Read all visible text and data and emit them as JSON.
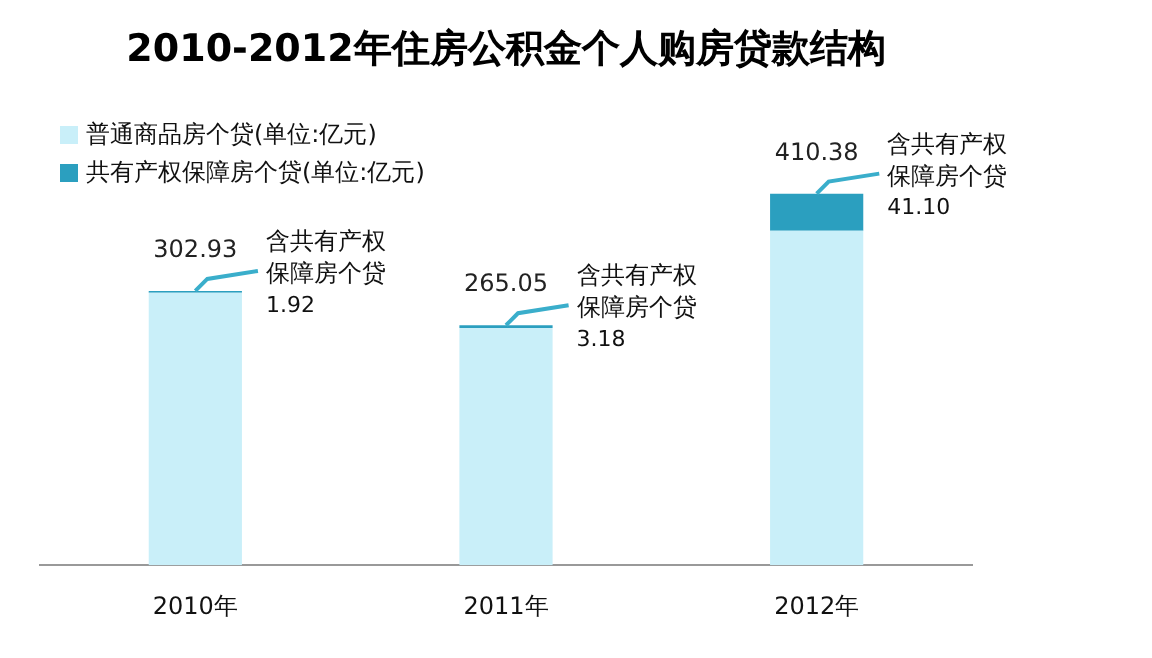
{
  "chart_data": {
    "type": "bar",
    "title": "2010-2012年住房公积金个人购房贷款结构",
    "categories": [
      "2010年",
      "2011年",
      "2012年"
    ],
    "stacked": true,
    "series": [
      {
        "name": "普通商品房个贷(单位:亿元)",
        "color": "#c9eff9",
        "values": [
          301.01,
          261.87,
          369.28
        ]
      },
      {
        "name": "共有产权保障房个贷(单位:亿元)",
        "color": "#2b9fbf",
        "values": [
          1.92,
          3.18,
          41.1
        ],
        "value_labels": [
          "1.92",
          "3.18",
          "41.10"
        ]
      }
    ],
    "totals": [
      "302.93",
      "265.05",
      "410.38"
    ],
    "annotations": [
      {
        "text": "含共有产权保障房个贷",
        "x": "2010年",
        "y": 302.93
      },
      {
        "text": "含共有产权保障房个贷",
        "x": "2011年",
        "y": 265.05
      },
      {
        "text": "含共有产权保障房个贷",
        "x": "2012年",
        "y": 410.38
      }
    ],
    "legend": "top left"
  }
}
